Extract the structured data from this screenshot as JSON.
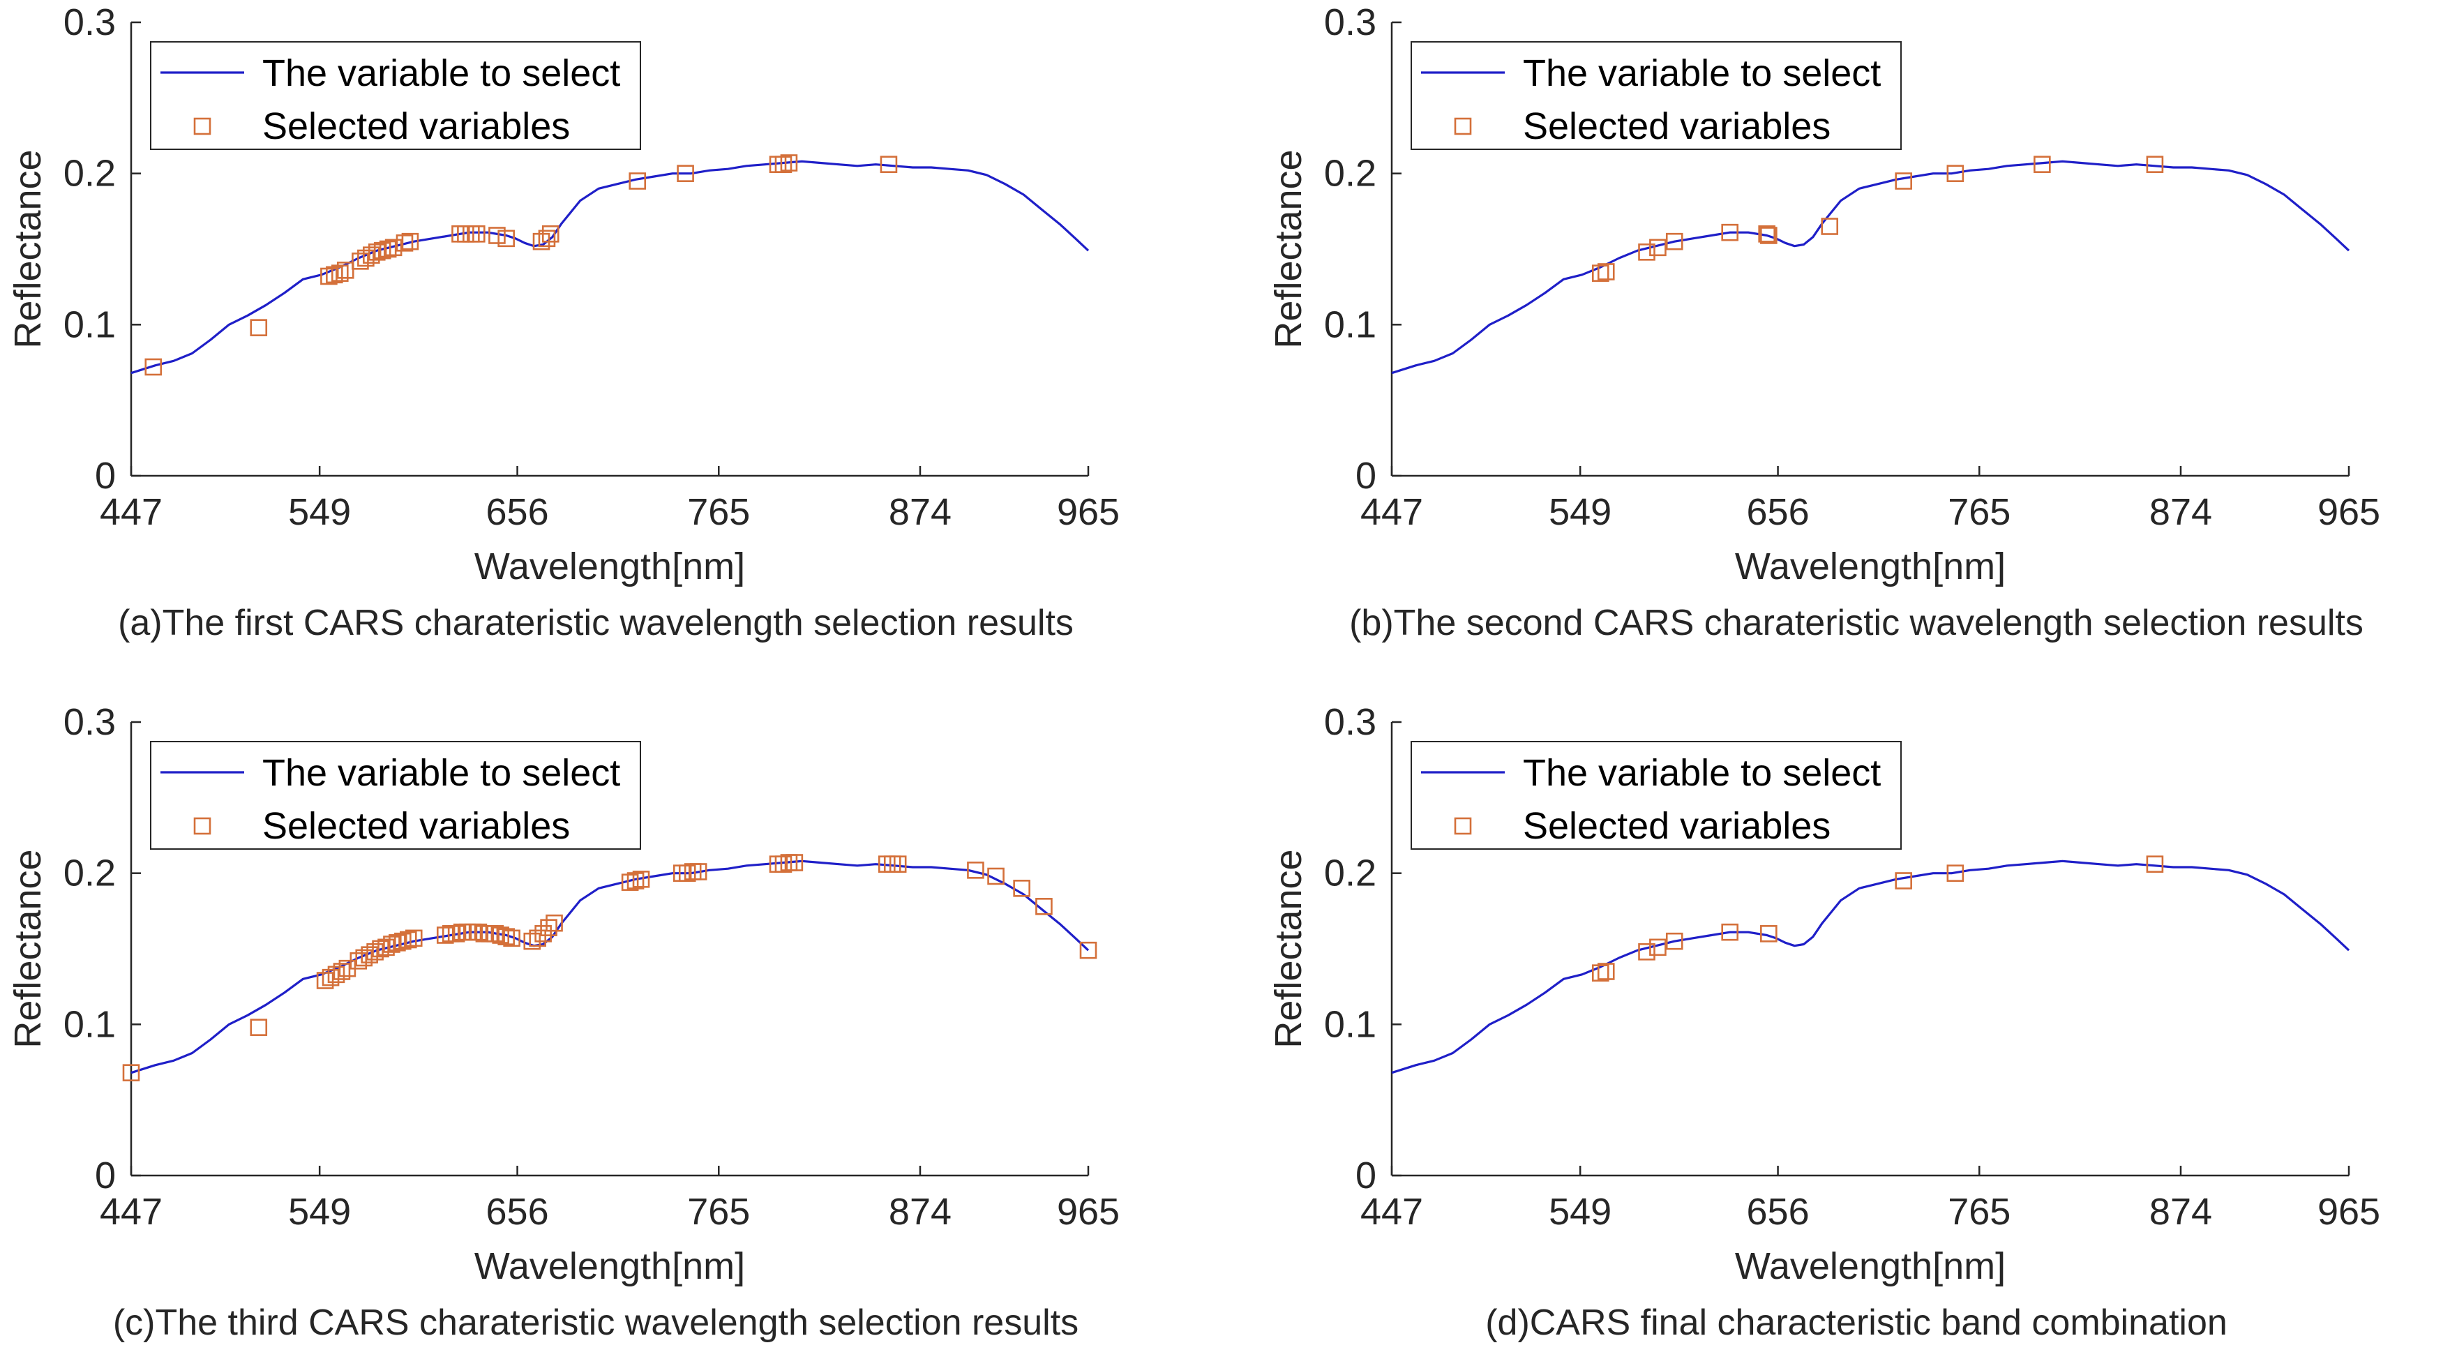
{
  "chart_data": [
    {
      "type": "line",
      "panel": "a",
      "caption": "(a)The first CARS charateristic wavelength selection results",
      "xlabel": "Wavelength[nm]",
      "ylabel": "Reflectance",
      "xlim": [
        447,
        965
      ],
      "ylim": [
        0,
        0.3
      ],
      "xticks": [
        "447",
        "549",
        "656",
        "765",
        "874",
        "965"
      ],
      "yticks": [
        "0",
        "0.1",
        "0.2",
        "0.3"
      ],
      "legend_position": "top-left",
      "series": [
        {
          "name": "The variable to select",
          "kind": "line",
          "color": "#1f1fc8"
        },
        {
          "name": "Selected variables",
          "kind": "marker",
          "color": "#d4703a",
          "x": [
            459,
            516,
            554,
            557,
            560,
            563,
            571,
            574,
            577,
            580,
            583,
            586,
            589,
            595,
            598,
            625,
            628,
            631,
            634,
            645,
            650,
            669,
            672,
            674,
            721,
            747,
            797,
            800,
            803,
            857
          ],
          "y": [
            0.072,
            0.098,
            0.132,
            0.133,
            0.134,
            0.136,
            0.142,
            0.144,
            0.146,
            0.148,
            0.149,
            0.15,
            0.151,
            0.154,
            0.155,
            0.16,
            0.16,
            0.16,
            0.16,
            0.159,
            0.157,
            0.155,
            0.157,
            0.16,
            0.195,
            0.2,
            0.206,
            0.206,
            0.207,
            0.206
          ]
        }
      ]
    },
    {
      "type": "line",
      "panel": "b",
      "caption": "(b)The second CARS charateristic wavelength selection results",
      "xlabel": "Wavelength[nm]",
      "ylabel": "Reflectance",
      "xlim": [
        447,
        965
      ],
      "ylim": [
        0,
        0.3
      ],
      "xticks": [
        "447",
        "549",
        "656",
        "765",
        "874",
        "965"
      ],
      "yticks": [
        "0",
        "0.1",
        "0.2",
        "0.3"
      ],
      "legend_position": "top-left",
      "series": [
        {
          "name": "The variable to select",
          "kind": "line",
          "color": "#1f1fc8"
        },
        {
          "name": "Selected variables",
          "kind": "marker",
          "color": "#d4703a",
          "x": [
            560,
            563,
            585,
            591,
            600,
            630,
            650,
            651,
            684,
            724,
            752,
            799,
            860
          ],
          "y": [
            0.134,
            0.135,
            0.148,
            0.151,
            0.155,
            0.161,
            0.16,
            0.159,
            0.165,
            0.195,
            0.2,
            0.206,
            0.206
          ]
        }
      ]
    },
    {
      "type": "line",
      "panel": "c",
      "caption": "(c)The third CARS charateristic wavelength selection results",
      "xlabel": "Wavelength[nm]",
      "ylabel": "Reflectance",
      "xlim": [
        447,
        965
      ],
      "ylim": [
        0,
        0.3
      ],
      "xticks": [
        "447",
        "549",
        "656",
        "765",
        "874",
        "965"
      ],
      "yticks": [
        "0",
        "0.1",
        "0.2",
        "0.3"
      ],
      "legend_position": "top-left",
      "series": [
        {
          "name": "The variable to select",
          "kind": "line",
          "color": "#1f1fc8"
        },
        {
          "name": "Selected variables",
          "kind": "marker",
          "color": "#d4703a",
          "x": [
            447,
            516,
            552,
            555,
            558,
            561,
            564,
            570,
            573,
            576,
            579,
            582,
            585,
            588,
            591,
            594,
            597,
            600,
            617,
            620,
            623,
            626,
            629,
            632,
            635,
            638,
            641,
            644,
            647,
            650,
            653,
            664,
            667,
            670,
            673,
            676,
            717,
            720,
            723,
            745,
            748,
            751,
            754,
            797,
            800,
            803,
            806,
            856,
            859,
            862,
            904,
            915,
            929,
            941,
            965
          ],
          "y": [
            0.068,
            0.098,
            0.129,
            0.131,
            0.133,
            0.135,
            0.137,
            0.142,
            0.144,
            0.146,
            0.148,
            0.15,
            0.151,
            0.153,
            0.154,
            0.155,
            0.156,
            0.157,
            0.159,
            0.16,
            0.16,
            0.161,
            0.161,
            0.161,
            0.161,
            0.16,
            0.16,
            0.16,
            0.159,
            0.158,
            0.157,
            0.155,
            0.157,
            0.16,
            0.164,
            0.167,
            0.194,
            0.195,
            0.196,
            0.2,
            0.2,
            0.201,
            0.201,
            0.206,
            0.206,
            0.207,
            0.207,
            0.206,
            0.206,
            0.206,
            0.202,
            0.198,
            0.19,
            0.178,
            0.149
          ]
        }
      ]
    },
    {
      "type": "line",
      "panel": "d",
      "caption": "(d)CARS final characteristic band combination",
      "xlabel": "Wavelength[nm]",
      "ylabel": "Reflectance",
      "xlim": [
        447,
        965
      ],
      "ylim": [
        0,
        0.3
      ],
      "xticks": [
        "447",
        "549",
        "656",
        "765",
        "874",
        "965"
      ],
      "yticks": [
        "0",
        "0.1",
        "0.2",
        "0.3"
      ],
      "legend_position": "top-left",
      "series": [
        {
          "name": "The variable to select",
          "kind": "line",
          "color": "#1f1fc8"
        },
        {
          "name": "Selected variables",
          "kind": "marker",
          "color": "#d4703a",
          "x": [
            560,
            563,
            585,
            591,
            600,
            630,
            651,
            724,
            752,
            860
          ],
          "y": [
            0.134,
            0.135,
            0.148,
            0.151,
            0.155,
            0.161,
            0.16,
            0.195,
            0.2,
            0.206
          ]
        }
      ]
    }
  ],
  "spectrum": {
    "x": [
      447,
      460,
      470,
      480,
      490,
      500,
      510,
      520,
      530,
      540,
      550,
      560,
      570,
      580,
      590,
      600,
      610,
      620,
      630,
      640,
      650,
      655,
      660,
      665,
      670,
      675,
      680,
      690,
      700,
      710,
      720,
      730,
      740,
      750,
      760,
      770,
      780,
      790,
      800,
      810,
      820,
      830,
      840,
      850,
      860,
      870,
      880,
      890,
      900,
      910,
      920,
      930,
      940,
      950,
      958,
      965
    ],
    "y": [
      0.068,
      0.073,
      0.076,
      0.081,
      0.09,
      0.1,
      0.106,
      0.113,
      0.121,
      0.13,
      0.133,
      0.138,
      0.144,
      0.149,
      0.152,
      0.155,
      0.157,
      0.159,
      0.161,
      0.161,
      0.159,
      0.157,
      0.154,
      0.152,
      0.153,
      0.158,
      0.167,
      0.182,
      0.19,
      0.193,
      0.196,
      0.198,
      0.2,
      0.2,
      0.202,
      0.203,
      0.205,
      0.206,
      0.207,
      0.208,
      0.207,
      0.206,
      0.205,
      0.206,
      0.205,
      0.204,
      0.204,
      0.203,
      0.202,
      0.199,
      0.193,
      0.186,
      0.176,
      0.166,
      0.157,
      0.149
    ]
  }
}
